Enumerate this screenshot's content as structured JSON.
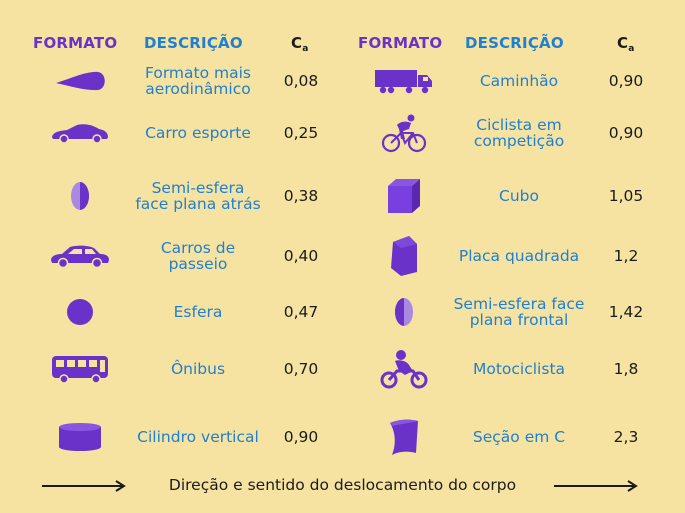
{
  "headers": {
    "formato": "FORMATO",
    "descricao": "DESCRIÇÃO",
    "ca": "C",
    "ca_sub": "a"
  },
  "left_rows": [
    {
      "icon": "teardrop-icon",
      "description": "Formato mais aerodinâmico",
      "ca": "0,08"
    },
    {
      "icon": "sports-car-icon",
      "description": "Carro esporte",
      "ca": "0,25"
    },
    {
      "icon": "half-sphere-back-icon",
      "description": "Semi-esfera face plana atrás",
      "ca": "0,38"
    },
    {
      "icon": "sedan-car-icon",
      "description": "Carros de passeio",
      "ca": "0,40"
    },
    {
      "icon": "sphere-icon",
      "description": "Esfera",
      "ca": "0,47"
    },
    {
      "icon": "bus-icon",
      "description": "Ônibus",
      "ca": "0,70"
    },
    {
      "icon": "cylinder-icon",
      "description": "Cilindro vertical",
      "ca": "0,90"
    }
  ],
  "right_rows": [
    {
      "icon": "truck-icon",
      "description": "Caminhão",
      "ca": "0,90"
    },
    {
      "icon": "cyclist-icon",
      "description": "Ciclista em competição",
      "ca": "0,90"
    },
    {
      "icon": "cube-icon",
      "description": "Cubo",
      "ca": "1,05"
    },
    {
      "icon": "square-plate-icon",
      "description": "Placa quadrada",
      "ca": "1,2"
    },
    {
      "icon": "half-sphere-front-icon",
      "description": "Semi-esfera face plana frontal",
      "ca": "1,42"
    },
    {
      "icon": "motorcyclist-icon",
      "description": "Motociclista",
      "ca": "1,8"
    },
    {
      "icon": "c-section-icon",
      "description": "Seção em C",
      "ca": "2,3"
    }
  ],
  "footer": {
    "text": "Direção e sentido do deslocamento do corpo"
  },
  "colors": {
    "background": "#f7e3a1",
    "purple": "#6a32c9",
    "blue": "#1f7fd0",
    "text": "#1b1b1b"
  }
}
